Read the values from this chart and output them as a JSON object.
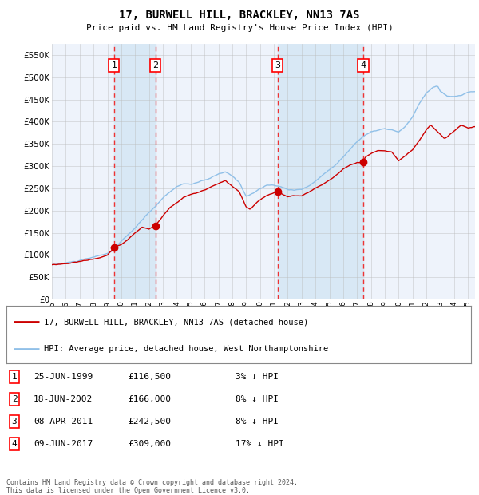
{
  "title": "17, BURWELL HILL, BRACKLEY, NN13 7AS",
  "subtitle": "Price paid vs. HM Land Registry's House Price Index (HPI)",
  "legend_line1": "17, BURWELL HILL, BRACKLEY, NN13 7AS (detached house)",
  "legend_line2": "HPI: Average price, detached house, West Northamptonshire",
  "footer1": "Contains HM Land Registry data © Crown copyright and database right 2024.",
  "footer2": "This data is licensed under the Open Government Licence v3.0.",
  "transactions": [
    {
      "label": "1",
      "date": "25-JUN-1999",
      "price": 116500,
      "note": "3% ↓ HPI",
      "year": 1999.48
    },
    {
      "label": "2",
      "date": "18-JUN-2002",
      "price": 166000,
      "note": "8% ↓ HPI",
      "year": 2002.46
    },
    {
      "label": "3",
      "date": "08-APR-2011",
      "price": 242500,
      "note": "8% ↓ HPI",
      "year": 2011.27
    },
    {
      "label": "4",
      "date": "09-JUN-2017",
      "price": 309000,
      "note": "17% ↓ HPI",
      "year": 2017.44
    }
  ],
  "background_color": "#ffffff",
  "chart_bg_color": "#eef3fb",
  "grid_color": "#bbbbbb",
  "hpi_color": "#90c0e8",
  "price_color": "#cc0000",
  "dashed_color": "#ee3333",
  "shaded_region_color": "#d8e8f5",
  "ylim": [
    0,
    575000
  ],
  "yticks": [
    0,
    50000,
    100000,
    150000,
    200000,
    250000,
    300000,
    350000,
    400000,
    450000,
    500000,
    550000
  ],
  "xlim_start": 1995.0,
  "xlim_end": 2025.5
}
